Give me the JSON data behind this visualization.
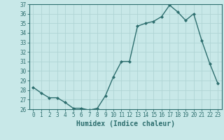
{
  "x": [
    0,
    1,
    2,
    3,
    4,
    5,
    6,
    7,
    8,
    9,
    10,
    11,
    12,
    13,
    14,
    15,
    16,
    17,
    18,
    19,
    20,
    21,
    22,
    23
  ],
  "y": [
    28.3,
    27.7,
    27.2,
    27.2,
    26.7,
    26.1,
    26.1,
    25.9,
    26.1,
    27.4,
    29.4,
    31.0,
    31.0,
    34.7,
    35.0,
    35.2,
    35.7,
    36.9,
    36.2,
    35.3,
    36.0,
    33.2,
    30.8,
    28.7
  ],
  "line_color": "#2d6e6e",
  "marker": "D",
  "marker_size": 2.0,
  "bg_color": "#c8e8e8",
  "grid_color": "#b0d4d4",
  "xlabel": "Humidex (Indice chaleur)",
  "xlim": [
    -0.5,
    23.5
  ],
  "ylim": [
    26,
    37
  ],
  "yticks": [
    26,
    27,
    28,
    29,
    30,
    31,
    32,
    33,
    34,
    35,
    36,
    37
  ],
  "xticks": [
    0,
    1,
    2,
    3,
    4,
    5,
    6,
    7,
    8,
    9,
    10,
    11,
    12,
    13,
    14,
    15,
    16,
    17,
    18,
    19,
    20,
    21,
    22,
    23
  ],
  "tick_label_fontsize": 5.5,
  "xlabel_fontsize": 7.0,
  "tick_color": "#2d6e6e",
  "spine_color": "#2d6e6e",
  "line_width": 1.0
}
